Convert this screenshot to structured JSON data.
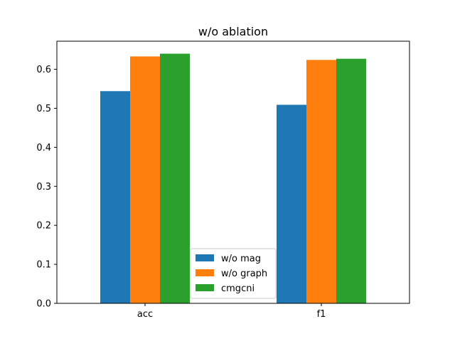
{
  "chart_data": {
    "type": "bar",
    "title": "w/o ablation",
    "xlabel": "",
    "ylabel": "",
    "categories": [
      "acc",
      "f1"
    ],
    "series": [
      {
        "name": "w/o mag",
        "values": [
          0.544,
          0.509
        ],
        "color": "#1f77b4"
      },
      {
        "name": "w/o graph",
        "values": [
          0.633,
          0.624
        ],
        "color": "#ff7f0e"
      },
      {
        "name": "cmgcni",
        "values": [
          0.64,
          0.627
        ],
        "color": "#2ca02c"
      }
    ],
    "ylim": [
      0,
      0.672
    ],
    "yticks": [
      "0.0",
      "0.1",
      "0.2",
      "0.3",
      "0.4",
      "0.5",
      "0.6"
    ],
    "grid": false,
    "legend_position": "lower center"
  }
}
